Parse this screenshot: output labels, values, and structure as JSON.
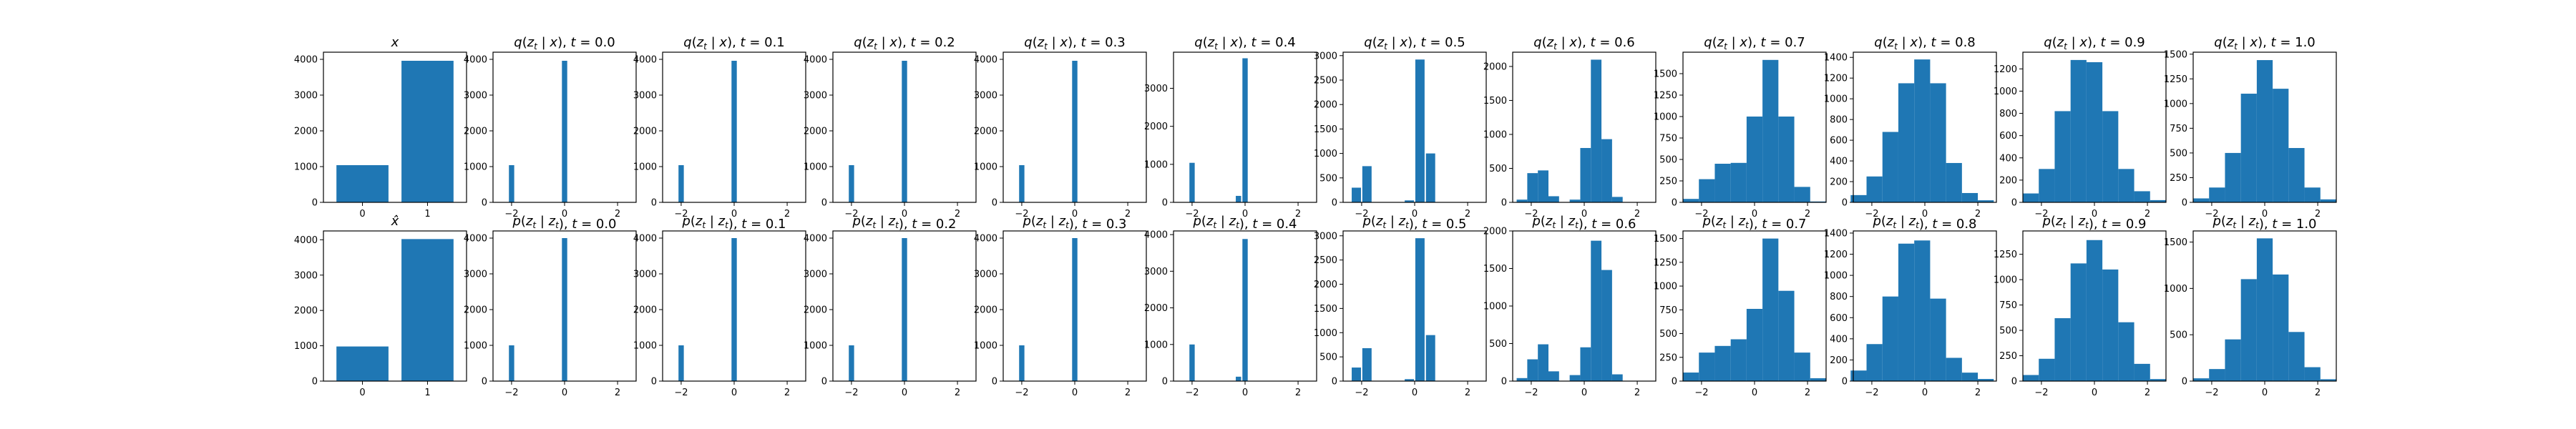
{
  "chart_data": [
    {
      "type": "bar",
      "title": "x",
      "categories": [
        "0",
        "1"
      ],
      "values": [
        1040,
        3960
      ],
      "ylim": [
        0,
        4200
      ],
      "yticks": [
        0,
        1000,
        2000,
        3000,
        4000
      ]
    },
    {
      "type": "histogram",
      "title": "q(z_t | x), t = 0.0",
      "bins": [
        {
          "x": -2.0,
          "y": 1040
        },
        {
          "x": 0.0,
          "y": 3960
        }
      ],
      "xlim": [
        -2.7,
        2.7
      ],
      "xticks": [
        -2,
        0,
        2
      ],
      "ylim": [
        0,
        4200
      ],
      "yticks": [
        0,
        1000,
        2000,
        3000,
        4000
      ]
    },
    {
      "type": "histogram",
      "title": "q(z_t | x), t = 0.1",
      "bins": [
        {
          "x": -2.0,
          "y": 1040
        },
        {
          "x": 0.0,
          "y": 3960
        }
      ],
      "xlim": [
        -2.7,
        2.7
      ],
      "xticks": [
        -2,
        0,
        2
      ],
      "ylim": [
        0,
        4200
      ],
      "yticks": [
        0,
        1000,
        2000,
        3000,
        4000
      ]
    },
    {
      "type": "histogram",
      "title": "q(z_t | x), t = 0.2",
      "bins": [
        {
          "x": -2.0,
          "y": 1040
        },
        {
          "x": 0.0,
          "y": 3960
        }
      ],
      "xlim": [
        -2.7,
        2.7
      ],
      "xticks": [
        -2,
        0,
        2
      ],
      "ylim": [
        0,
        4200
      ],
      "yticks": [
        0,
        1000,
        2000,
        3000,
        4000
      ]
    },
    {
      "type": "histogram",
      "title": "q(z_t | x), t = 0.3",
      "bins": [
        {
          "x": -2.0,
          "y": 1040
        },
        {
          "x": 0.0,
          "y": 3960
        }
      ],
      "xlim": [
        -2.7,
        2.7
      ],
      "xticks": [
        -2,
        0,
        2
      ],
      "ylim": [
        0,
        4200
      ],
      "yticks": [
        0,
        1000,
        2000,
        3000,
        4000
      ]
    },
    {
      "type": "histogram",
      "title": "q(z_t | x), t = 0.4",
      "bins": [
        {
          "x": -2.0,
          "y": 1040
        },
        {
          "x": -0.25,
          "y": 170
        },
        {
          "x": 0.0,
          "y": 3790
        }
      ],
      "xlim": [
        -2.7,
        2.7
      ],
      "xticks": [
        -2,
        0,
        2
      ],
      "ylim": [
        0,
        3950
      ],
      "yticks": [
        0,
        1000,
        2000,
        3000
      ]
    },
    {
      "type": "histogram",
      "title": "q(z_t | x), t = 0.5",
      "bins": [
        {
          "x": -2.2,
          "y": 300
        },
        {
          "x": -1.8,
          "y": 740
        },
        {
          "x": -0.2,
          "y": 40
        },
        {
          "x": 0.2,
          "y": 2920
        },
        {
          "x": 0.6,
          "y": 1000
        }
      ],
      "xlim": [
        -2.7,
        2.7
      ],
      "xticks": [
        -2,
        0,
        2
      ],
      "ylim": [
        0,
        3070
      ],
      "yticks": [
        0,
        500,
        1000,
        1500,
        2000,
        2500,
        3000
      ]
    },
    {
      "type": "histogram",
      "title": "q(z_t | x), t = 0.6",
      "bins": [
        {
          "x": -2.35,
          "y": 40
        },
        {
          "x": -1.95,
          "y": 430
        },
        {
          "x": -1.55,
          "y": 470
        },
        {
          "x": -1.15,
          "y": 90
        },
        {
          "x": -0.35,
          "y": 40
        },
        {
          "x": 0.05,
          "y": 800
        },
        {
          "x": 0.45,
          "y": 2100
        },
        {
          "x": 0.85,
          "y": 930
        },
        {
          "x": 1.25,
          "y": 80
        }
      ],
      "xlim": [
        -2.7,
        2.7
      ],
      "xticks": [
        -2,
        0,
        2
      ],
      "ylim": [
        0,
        2210
      ],
      "yticks": [
        0,
        500,
        1000,
        1500,
        2000
      ]
    },
    {
      "type": "histogram",
      "title": "q(z_t | x), t = 0.7",
      "bins": [
        {
          "x": -2.4,
          "y": 40
        },
        {
          "x": -1.8,
          "y": 270
        },
        {
          "x": -1.2,
          "y": 450
        },
        {
          "x": -0.6,
          "y": 460
        },
        {
          "x": 0.0,
          "y": 1000
        },
        {
          "x": 0.6,
          "y": 1660
        },
        {
          "x": 1.2,
          "y": 1000
        },
        {
          "x": 1.8,
          "y": 180
        },
        {
          "x": 2.4,
          "y": 10
        }
      ],
      "xlim": [
        -2.7,
        2.7
      ],
      "xticks": [
        -2,
        0,
        2
      ],
      "ylim": [
        0,
        1750
      ],
      "yticks": [
        0,
        250,
        500,
        750,
        1000,
        1250,
        1500
      ]
    },
    {
      "type": "histogram",
      "title": "q(z_t | x), t = 0.8",
      "bins": [
        {
          "x": -2.5,
          "y": 70
        },
        {
          "x": -1.9,
          "y": 250
        },
        {
          "x": -1.3,
          "y": 680
        },
        {
          "x": -0.7,
          "y": 1150
        },
        {
          "x": -0.1,
          "y": 1380
        },
        {
          "x": 0.5,
          "y": 1150
        },
        {
          "x": 1.1,
          "y": 380
        },
        {
          "x": 1.7,
          "y": 90
        },
        {
          "x": 2.3,
          "y": 20
        }
      ],
      "xlim": [
        -2.7,
        2.7
      ],
      "xticks": [
        -2,
        0,
        2
      ],
      "ylim": [
        0,
        1450
      ],
      "yticks": [
        0,
        200,
        400,
        600,
        800,
        1000,
        1200,
        1400
      ]
    },
    {
      "type": "histogram",
      "title": "q(z_t | x), t = 0.9",
      "bins": [
        {
          "x": -2.4,
          "y": 80
        },
        {
          "x": -1.8,
          "y": 300
        },
        {
          "x": -1.2,
          "y": 820
        },
        {
          "x": -0.6,
          "y": 1280
        },
        {
          "x": 0.0,
          "y": 1260
        },
        {
          "x": 0.6,
          "y": 820
        },
        {
          "x": 1.2,
          "y": 300
        },
        {
          "x": 1.8,
          "y": 100
        },
        {
          "x": 2.4,
          "y": 20
        }
      ],
      "xlim": [
        -2.7,
        2.7
      ],
      "xticks": [
        -2,
        0,
        2
      ],
      "ylim": [
        0,
        1350
      ],
      "yticks": [
        0,
        200,
        400,
        600,
        800,
        1000,
        1200
      ]
    },
    {
      "type": "histogram",
      "title": "q(z_t | x), t = 1.0",
      "bins": [
        {
          "x": -2.4,
          "y": 40
        },
        {
          "x": -1.8,
          "y": 150
        },
        {
          "x": -1.2,
          "y": 500
        },
        {
          "x": -0.6,
          "y": 1100
        },
        {
          "x": 0.0,
          "y": 1440
        },
        {
          "x": 0.6,
          "y": 1150
        },
        {
          "x": 1.2,
          "y": 550
        },
        {
          "x": 1.8,
          "y": 150
        },
        {
          "x": 2.4,
          "y": 30
        }
      ],
      "xlim": [
        -2.7,
        2.7
      ],
      "xticks": [
        -2,
        0,
        2
      ],
      "ylim": [
        0,
        1520
      ],
      "yticks": [
        0,
        250,
        500,
        750,
        1000,
        1250,
        1500
      ]
    },
    {
      "type": "bar",
      "title": "x̂",
      "categories": [
        "0",
        "1"
      ],
      "values": [
        980,
        4020
      ],
      "ylim": [
        0,
        4250
      ],
      "yticks": [
        0,
        1000,
        2000,
        3000,
        4000
      ]
    },
    {
      "type": "histogram",
      "title": "p(z_t | z_t), t = 0.0",
      "bins": [
        {
          "x": -2.0,
          "y": 1000
        },
        {
          "x": 0.0,
          "y": 4000
        }
      ],
      "xlim": [
        -2.7,
        2.7
      ],
      "xticks": [
        -2,
        0,
        2
      ],
      "ylim": [
        0,
        4200
      ],
      "yticks": [
        0,
        1000,
        2000,
        3000,
        4000
      ]
    },
    {
      "type": "histogram",
      "title": "p(z_t | z_t), t = 0.1",
      "bins": [
        {
          "x": -2.0,
          "y": 1000
        },
        {
          "x": 0.0,
          "y": 4000
        }
      ],
      "xlim": [
        -2.7,
        2.7
      ],
      "xticks": [
        -2,
        0,
        2
      ],
      "ylim": [
        0,
        4200
      ],
      "yticks": [
        0,
        1000,
        2000,
        3000,
        4000
      ]
    },
    {
      "type": "histogram",
      "title": "p(z_t | z_t), t = 0.2",
      "bins": [
        {
          "x": -2.0,
          "y": 1000
        },
        {
          "x": 0.0,
          "y": 4000
        }
      ],
      "xlim": [
        -2.7,
        2.7
      ],
      "xticks": [
        -2,
        0,
        2
      ],
      "ylim": [
        0,
        4200
      ],
      "yticks": [
        0,
        1000,
        2000,
        3000,
        4000
      ]
    },
    {
      "type": "histogram",
      "title": "p(z_t | z_t), t = 0.3",
      "bins": [
        {
          "x": -2.0,
          "y": 1000
        },
        {
          "x": 0.0,
          "y": 4000
        }
      ],
      "xlim": [
        -2.7,
        2.7
      ],
      "xticks": [
        -2,
        0,
        2
      ],
      "ylim": [
        0,
        4200
      ],
      "yticks": [
        0,
        1000,
        2000,
        3000,
        4000
      ]
    },
    {
      "type": "histogram",
      "title": "p(z_t | z_t), t = 0.4",
      "bins": [
        {
          "x": -2.0,
          "y": 1000
        },
        {
          "x": -0.25,
          "y": 120
        },
        {
          "x": 0.0,
          "y": 3880
        }
      ],
      "xlim": [
        -2.7,
        2.7
      ],
      "xticks": [
        -2,
        0,
        2
      ],
      "ylim": [
        0,
        4100
      ],
      "yticks": [
        0,
        1000,
        2000,
        3000,
        4000
      ]
    },
    {
      "type": "histogram",
      "title": "p(z_t | z_t), t = 0.5",
      "bins": [
        {
          "x": -2.2,
          "y": 280
        },
        {
          "x": -1.8,
          "y": 680
        },
        {
          "x": -0.2,
          "y": 40
        },
        {
          "x": 0.2,
          "y": 2950
        },
        {
          "x": 0.6,
          "y": 950
        }
      ],
      "xlim": [
        -2.7,
        2.7
      ],
      "xticks": [
        -2,
        0,
        2
      ],
      "ylim": [
        0,
        3100
      ],
      "yticks": [
        0,
        500,
        1000,
        1500,
        2000,
        2500,
        3000
      ]
    },
    {
      "type": "histogram",
      "title": "p(z_t | z_t), t = 0.6",
      "bins": [
        {
          "x": -2.35,
          "y": 40
        },
        {
          "x": -1.95,
          "y": 290
        },
        {
          "x": -1.55,
          "y": 490
        },
        {
          "x": -1.15,
          "y": 130
        },
        {
          "x": -0.35,
          "y": 80
        },
        {
          "x": 0.05,
          "y": 450
        },
        {
          "x": 0.45,
          "y": 1870
        },
        {
          "x": 0.85,
          "y": 1480
        },
        {
          "x": 1.25,
          "y": 90
        }
      ],
      "xlim": [
        -2.7,
        2.7
      ],
      "xticks": [
        -2,
        0,
        2
      ],
      "ylim": [
        0,
        2000
      ],
      "yticks": [
        0,
        500,
        1000,
        1500,
        2000
      ]
    },
    {
      "type": "histogram",
      "title": "p(z_t | z_t), t = 0.7",
      "bins": [
        {
          "x": -2.4,
          "y": 90
        },
        {
          "x": -1.8,
          "y": 300
        },
        {
          "x": -1.2,
          "y": 370
        },
        {
          "x": -0.6,
          "y": 440
        },
        {
          "x": 0.0,
          "y": 760
        },
        {
          "x": 0.6,
          "y": 1500
        },
        {
          "x": 1.2,
          "y": 950
        },
        {
          "x": 1.8,
          "y": 300
        },
        {
          "x": 2.4,
          "y": 30
        }
      ],
      "xlim": [
        -2.7,
        2.7
      ],
      "xticks": [
        -2,
        0,
        2
      ],
      "ylim": [
        0,
        1580
      ],
      "yticks": [
        0,
        250,
        500,
        750,
        1000,
        1250,
        1500
      ]
    },
    {
      "type": "histogram",
      "title": "p(z_t | z_t), t = 0.8",
      "bins": [
        {
          "x": -2.5,
          "y": 100
        },
        {
          "x": -1.9,
          "y": 350
        },
        {
          "x": -1.3,
          "y": 800
        },
        {
          "x": -0.7,
          "y": 1300
        },
        {
          "x": -0.1,
          "y": 1330
        },
        {
          "x": 0.5,
          "y": 780
        },
        {
          "x": 1.1,
          "y": 220
        },
        {
          "x": 1.7,
          "y": 80
        },
        {
          "x": 2.3,
          "y": 20
        }
      ],
      "xlim": [
        -2.7,
        2.7
      ],
      "xticks": [
        -2,
        0,
        2
      ],
      "ylim": [
        0,
        1420
      ],
      "yticks": [
        0,
        200,
        400,
        600,
        800,
        1000,
        1200,
        1400
      ]
    },
    {
      "type": "histogram",
      "title": "p(z_t | z_t), t = 0.9",
      "bins": [
        {
          "x": -2.4,
          "y": 60
        },
        {
          "x": -1.8,
          "y": 220
        },
        {
          "x": -1.2,
          "y": 620
        },
        {
          "x": -0.6,
          "y": 1160
        },
        {
          "x": 0.0,
          "y": 1390
        },
        {
          "x": 0.6,
          "y": 1100
        },
        {
          "x": 1.2,
          "y": 580
        },
        {
          "x": 1.8,
          "y": 170
        },
        {
          "x": 2.4,
          "y": 20
        }
      ],
      "xlim": [
        -2.7,
        2.7
      ],
      "xticks": [
        -2,
        0,
        2
      ],
      "ylim": [
        0,
        1480
      ],
      "yticks": [
        0,
        250,
        500,
        750,
        1000,
        1250
      ]
    },
    {
      "type": "histogram",
      "title": "p(z_t | z_t), t = 1.0",
      "bins": [
        {
          "x": -2.4,
          "y": 30
        },
        {
          "x": -1.8,
          "y": 130
        },
        {
          "x": -1.2,
          "y": 450
        },
        {
          "x": -0.6,
          "y": 1100
        },
        {
          "x": 0.0,
          "y": 1540
        },
        {
          "x": 0.6,
          "y": 1150
        },
        {
          "x": 1.2,
          "y": 530
        },
        {
          "x": 1.8,
          "y": 150
        },
        {
          "x": 2.4,
          "y": 20
        }
      ],
      "xlim": [
        -2.7,
        2.7
      ],
      "xticks": [
        -2,
        0,
        2
      ],
      "ylim": [
        0,
        1620
      ],
      "yticks": [
        0,
        500,
        1000,
        1500
      ]
    }
  ],
  "colors": {
    "bar": "#1f77b4",
    "axis": "#000000",
    "background": "#ffffff"
  }
}
